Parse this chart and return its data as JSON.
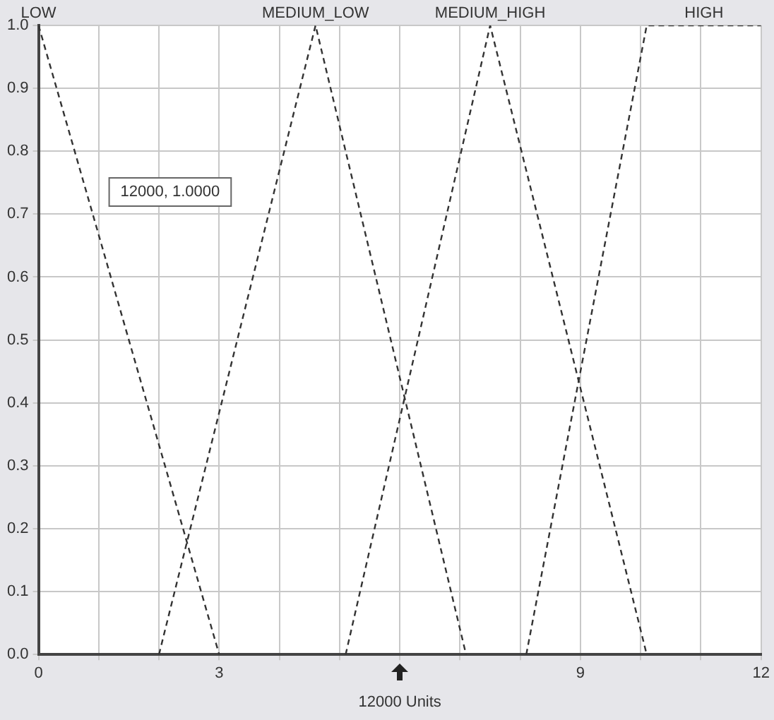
{
  "chart_data": {
    "type": "line",
    "xlabel": "12000 Units",
    "annotations": [
      "12000, 1.0000"
    ],
    "series": [
      {
        "name": "LOW",
        "color": "#333333",
        "x": [
          0,
          3
        ],
        "values": [
          1,
          0
        ]
      },
      {
        "name": "MEDIUM_LOW",
        "color": "#333333",
        "x": [
          2,
          4.6,
          7.1
        ],
        "values": [
          0,
          1,
          0
        ]
      },
      {
        "name": "MEDIUM_HIGH",
        "color": "#333333",
        "x": [
          5.1,
          7.5,
          10.1
        ],
        "values": [
          0,
          1,
          0
        ]
      },
      {
        "name": "HIGH",
        "color": "#333333",
        "x": [
          8.1,
          10.1,
          12
        ],
        "values": [
          0,
          1,
          1
        ]
      }
    ],
    "xlim": [
      0,
      12
    ],
    "xticks": [
      0,
      {
        "value": 1,
        "label": null
      },
      {
        "value": 2,
        "label": null
      },
      3,
      {
        "value": 4,
        "label": null
      },
      {
        "value": 5,
        "label": null
      },
      {
        "value": 6,
        "label": null
      },
      {
        "value": 7,
        "label": null
      },
      {
        "value": 8,
        "label": null
      },
      9,
      {
        "value": 10,
        "label": null
      },
      {
        "value": 11,
        "label": null
      },
      12
    ],
    "ylim": [
      0,
      1
    ],
    "yticks": [
      {
        "value": 0,
        "label": "0.0"
      },
      0.1,
      0.2,
      0.3,
      0.4,
      0.5,
      0.6,
      0.7,
      0.8,
      0.9,
      {
        "value": 1,
        "label": "1.0"
      }
    ],
    "grid": true,
    "legend": false,
    "marker": "none",
    "line_style": "dashed"
  }
}
